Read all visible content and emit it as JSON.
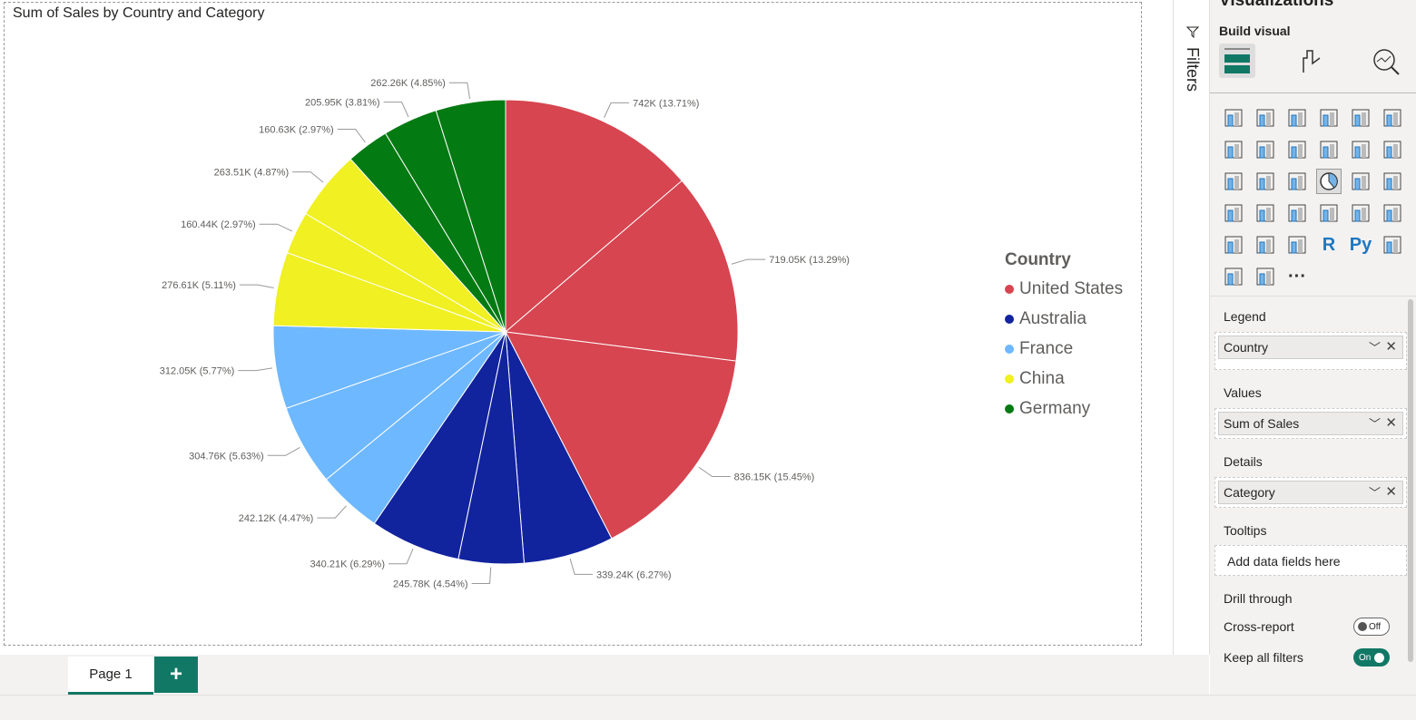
{
  "chart_data": {
    "type": "pie",
    "title": "Sum of Sales by Country and Category",
    "legend": {
      "title": "Country",
      "position": "right",
      "entries": [
        {
          "name": "United States",
          "color": "#D64550"
        },
        {
          "name": "Australia",
          "color": "#12239E"
        },
        {
          "name": "France",
          "color": "#6EB8FF"
        },
        {
          "name": "China",
          "color": "#F0F022"
        },
        {
          "name": "Germany",
          "color": "#037A12"
        }
      ]
    },
    "slices": [
      {
        "country": "United States",
        "value": 742000,
        "label": "742K (13.71%)"
      },
      {
        "country": "United States",
        "value": 719050,
        "label": "719.05K (13.29%)"
      },
      {
        "country": "United States",
        "value": 836150,
        "label": "836.15K (15.45%)"
      },
      {
        "country": "Australia",
        "value": 339240,
        "label": "339.24K (6.27%)"
      },
      {
        "country": "Australia",
        "value": 245780,
        "label": "245.78K (4.54%)"
      },
      {
        "country": "Australia",
        "value": 340210,
        "label": "340.21K (6.29%)"
      },
      {
        "country": "France",
        "value": 242120,
        "label": "242.12K (4.47%)"
      },
      {
        "country": "France",
        "value": 304760,
        "label": "304.76K (5.63%)"
      },
      {
        "country": "France",
        "value": 312050,
        "label": "312.05K (5.77%)"
      },
      {
        "country": "China",
        "value": 276610,
        "label": "276.61K (5.11%)"
      },
      {
        "country": "China",
        "value": 160440,
        "label": "160.44K (2.97%)"
      },
      {
        "country": "China",
        "value": 263510,
        "label": "263.51K (4.87%)"
      },
      {
        "country": "Germany",
        "value": 160630,
        "label": "160.63K (2.97%)"
      },
      {
        "country": "Germany",
        "value": 205950,
        "label": "205.95K (3.81%)"
      },
      {
        "country": "Germany",
        "value": 262260,
        "label": "262.26K (4.85%)"
      }
    ]
  },
  "pages": {
    "tab": "Page 1",
    "add": "+"
  },
  "filters": {
    "label": "Filters",
    "icon": "filter-icon"
  },
  "viz": {
    "title": "Visualizations",
    "build": "Build visual",
    "icons": [
      "stacked-bar",
      "stacked-column",
      "clustered-bar",
      "clustered-column",
      "100-bar",
      "100-column",
      "line",
      "area",
      "stacked-area",
      "line-column",
      "line-clustered-column",
      "ribbon",
      "waterfall",
      "funnel",
      "scatter",
      "pie",
      "donut",
      "treemap",
      "map",
      "filled-map",
      "gauge",
      "card",
      "multi-row-card",
      "kpi",
      "slicer",
      "table",
      "matrix",
      "R",
      "Py",
      "decomposition-tree",
      "trophy",
      "azure-map",
      "more"
    ],
    "legend_label": "Legend",
    "legend_field": "Country",
    "values_label": "Values",
    "values_field": "Sum of Sales",
    "details_label": "Details",
    "details_field": "Category",
    "tooltips_label": "Tooltips",
    "tooltips_placeholder": "Add data fields here",
    "drill_label": "Drill through",
    "cross_report": "Cross-report",
    "cross_state": "Off",
    "keep_filters": "Keep all filters",
    "keep_state": "On"
  }
}
